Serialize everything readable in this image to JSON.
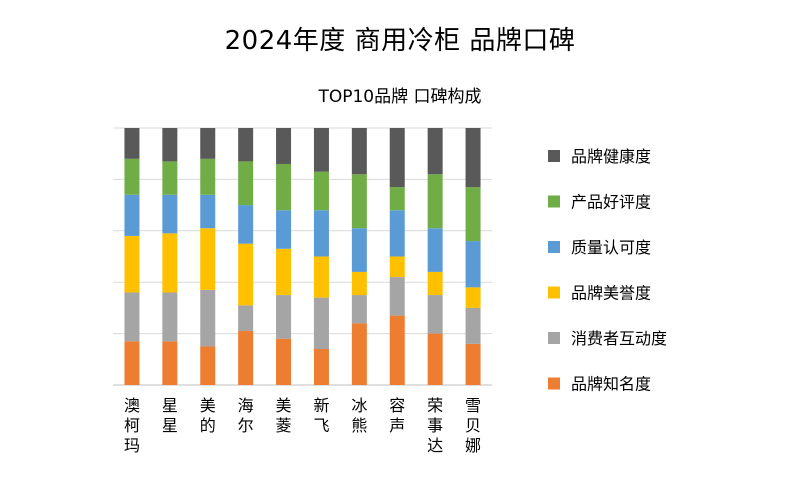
{
  "chart_data": {
    "type": "bar",
    "stacked": true,
    "normalized": true,
    "title": "2024年度 商用冷柜 品牌口碑",
    "subtitle": "TOP10品牌 口碑构成",
    "categories": [
      "澳柯玛",
      "星星",
      "美的",
      "海尔",
      "美菱",
      "新飞",
      "冰熊",
      "容声",
      "荣事达",
      "雪贝娜"
    ],
    "legend_position": "right",
    "grid": true,
    "series": [
      {
        "name": "品牌知名度",
        "color": "#ED7D31",
        "values": [
          17,
          17,
          15,
          21,
          18,
          14,
          24,
          27,
          20,
          16
        ]
      },
      {
        "name": "消费者互动度",
        "color": "#A5A5A5",
        "values": [
          19,
          19,
          22,
          10,
          17,
          20,
          11,
          15,
          15,
          14
        ]
      },
      {
        "name": "品牌美誉度",
        "color": "#FFC000",
        "values": [
          22,
          23,
          24,
          24,
          18,
          16,
          9,
          8,
          9,
          8
        ]
      },
      {
        "name": "质量认可度",
        "color": "#5B9BD5",
        "values": [
          16,
          15,
          13,
          15,
          15,
          18,
          17,
          18,
          17,
          18
        ]
      },
      {
        "name": "产品好评度",
        "color": "#70AD47",
        "values": [
          14,
          13,
          14,
          17,
          18,
          15,
          21,
          9,
          21,
          21
        ]
      },
      {
        "name": "品牌健康度",
        "color": "#595959",
        "values": [
          12,
          13,
          12,
          13,
          14,
          17,
          18,
          23,
          18,
          23
        ]
      }
    ]
  }
}
